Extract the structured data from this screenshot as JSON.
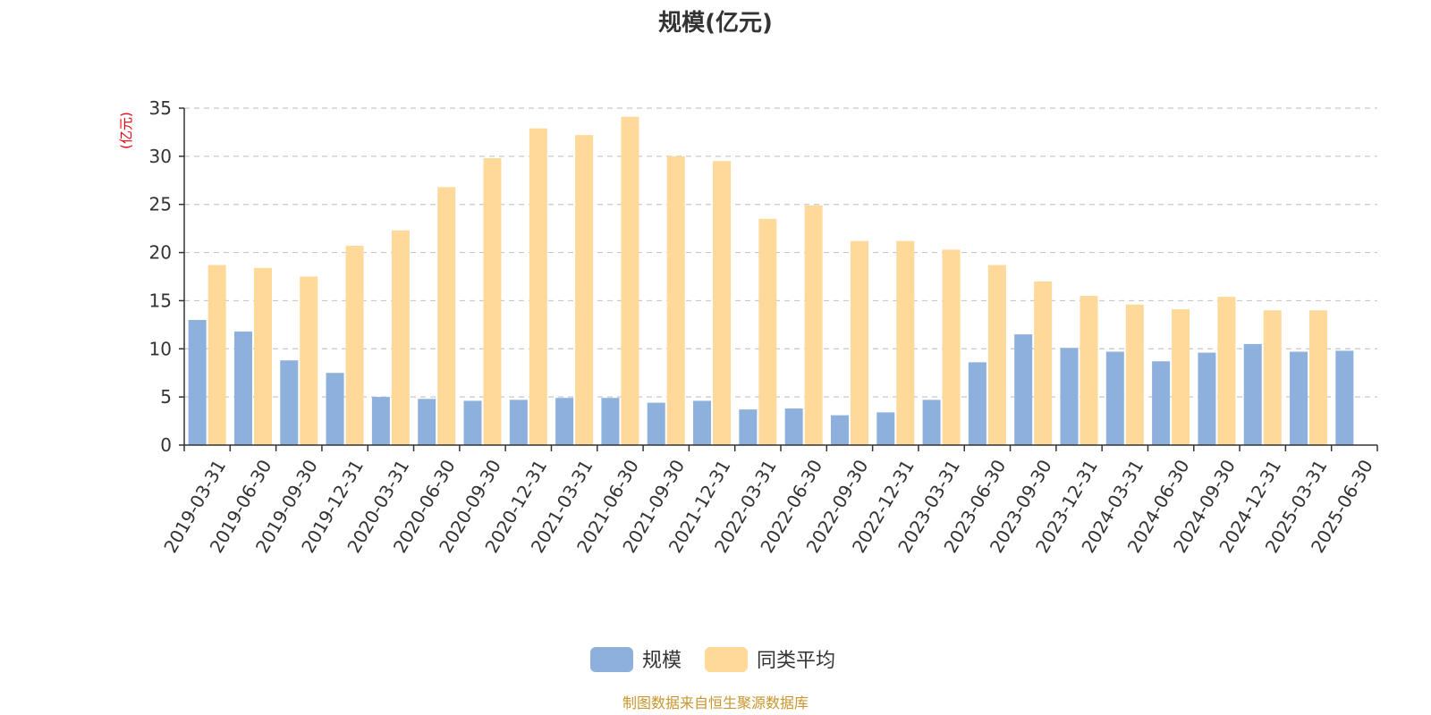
{
  "chart_data": {
    "type": "bar",
    "title": "规模(亿元)",
    "ylabel": "(亿元)",
    "ylim": [
      0,
      35
    ],
    "yticks": [
      0,
      5,
      10,
      15,
      20,
      25,
      30,
      35
    ],
    "grid": true,
    "legend_position": "bottom",
    "categories": [
      "2019-03-31",
      "2019-06-30",
      "2019-09-30",
      "2019-12-31",
      "2020-03-31",
      "2020-06-30",
      "2020-09-30",
      "2020-12-31",
      "2021-03-31",
      "2021-06-30",
      "2021-09-30",
      "2021-12-31",
      "2022-03-31",
      "2022-06-30",
      "2022-09-30",
      "2022-12-31",
      "2023-03-31",
      "2023-06-30",
      "2023-09-30",
      "2023-12-31",
      "2024-03-31",
      "2024-06-30",
      "2024-09-30",
      "2024-12-31",
      "2025-03-31",
      "2025-06-30"
    ],
    "series": [
      {
        "name": "规模",
        "color": "#8eb0dd",
        "values": [
          13.0,
          11.8,
          8.8,
          7.5,
          5.0,
          4.8,
          4.6,
          4.7,
          4.9,
          4.9,
          4.4,
          4.6,
          3.7,
          3.8,
          3.1,
          3.4,
          4.7,
          8.6,
          11.5,
          10.1,
          9.7,
          8.7,
          9.6,
          10.5,
          9.7,
          9.8
        ]
      },
      {
        "name": "同类平均",
        "color": "#ffd99a",
        "values": [
          18.7,
          18.4,
          17.5,
          20.7,
          22.3,
          26.8,
          29.8,
          32.9,
          32.2,
          34.1,
          30.0,
          29.5,
          23.5,
          24.9,
          21.2,
          21.2,
          20.3,
          18.7,
          17.0,
          15.5,
          14.6,
          14.1,
          15.4,
          14.0,
          14.0,
          null
        ]
      }
    ]
  },
  "source_note": "制图数据来自恒生聚源数据库"
}
